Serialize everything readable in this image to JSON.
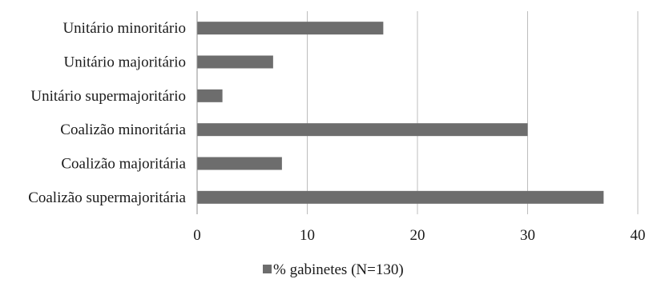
{
  "chart_data": {
    "type": "bar",
    "orientation": "horizontal",
    "categories": [
      "Unitário minoritário",
      "Unitário majoritário",
      "Unitário supermajoritário",
      "Coalizão minoritária",
      "Coalizão majoritária",
      "Coalizão supermajoritária"
    ],
    "series": [
      {
        "name": "% gabinetes (N=130)",
        "values": [
          16.9,
          6.9,
          2.3,
          30.0,
          7.7,
          36.9
        ]
      }
    ],
    "xlim": [
      0,
      40
    ],
    "xticks": [
      0,
      10,
      20,
      30,
      40
    ],
    "grid": "vertical",
    "legend_position": "bottom",
    "colors": {
      "bar": "#6d6d6d",
      "grid": "#bdbdbd",
      "axis": "#8c8c8c"
    }
  }
}
